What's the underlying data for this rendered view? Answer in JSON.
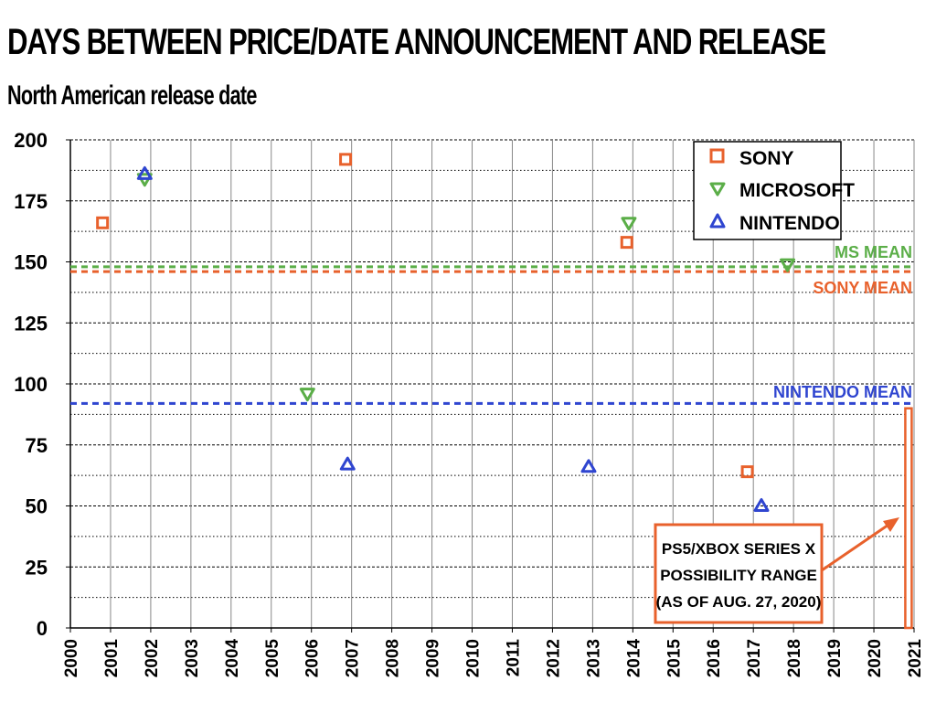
{
  "header": {
    "title": "DAYS BETWEEN PRICE/DATE ANNOUNCEMENT AND RELEASE",
    "subtitle": "North American release date"
  },
  "colors": {
    "sony": "#E8612C",
    "microsoft": "#5BAE48",
    "nintendo": "#2F45D0"
  },
  "legend": {
    "sony": "SONY",
    "microsoft": "MICROSOFT",
    "nintendo": "NINTENDO"
  },
  "means": {
    "ms_label": "MS MEAN",
    "sony_label": "SONY MEAN",
    "nintendo_label": "NINTENDO MEAN"
  },
  "annotation": {
    "line1": "PS5/XBOX SERIES X",
    "line2": "POSSIBILITY RANGE",
    "line3": "(AS OF AUG. 27, 2020)"
  },
  "chart_data": {
    "type": "scatter",
    "title": "DAYS BETWEEN PRICE/DATE ANNOUNCEMENT AND RELEASE",
    "subtitle": "North American release date",
    "xlabel": "",
    "ylabel": "",
    "xlim": [
      2000,
      2021
    ],
    "ylim": [
      0,
      200
    ],
    "x_ticks": [
      "2000",
      "2001",
      "2002",
      "2003",
      "2004",
      "2005",
      "2006",
      "2007",
      "2008",
      "2009",
      "2010",
      "2011",
      "2012",
      "2013",
      "2014",
      "2015",
      "2016",
      "2017",
      "2018",
      "2019",
      "2020",
      "2021"
    ],
    "y_ticks": [
      0,
      25,
      50,
      75,
      100,
      125,
      150,
      175,
      200
    ],
    "grid": true,
    "legend_position": "top-right",
    "series": [
      {
        "name": "SONY",
        "marker": "square",
        "points": [
          {
            "x": 2000.8,
            "y": 166
          },
          {
            "x": 2006.85,
            "y": 192
          },
          {
            "x": 2013.85,
            "y": 158
          },
          {
            "x": 2016.85,
            "y": 64
          }
        ]
      },
      {
        "name": "MICROSOFT",
        "marker": "triangle-down",
        "points": [
          {
            "x": 2001.85,
            "y": 184
          },
          {
            "x": 2005.9,
            "y": 96
          },
          {
            "x": 2013.9,
            "y": 166
          },
          {
            "x": 2017.85,
            "y": 149
          }
        ]
      },
      {
        "name": "NINTENDO",
        "marker": "triangle-up",
        "points": [
          {
            "x": 2001.85,
            "y": 186
          },
          {
            "x": 2006.9,
            "y": 67
          },
          {
            "x": 2012.9,
            "y": 66
          },
          {
            "x": 2017.2,
            "y": 50
          }
        ]
      }
    ],
    "reference_lines": [
      {
        "label": "MS MEAN",
        "y": 148
      },
      {
        "label": "SONY MEAN",
        "y": 146
      },
      {
        "label": "NINTENDO MEAN",
        "y": 92
      }
    ],
    "range_annotation": {
      "label": "PS5/XBOX SERIES X POSSIBILITY RANGE (AS OF AUG. 27, 2020)",
      "x": 2020.85,
      "y_range": [
        0,
        90
      ]
    }
  }
}
